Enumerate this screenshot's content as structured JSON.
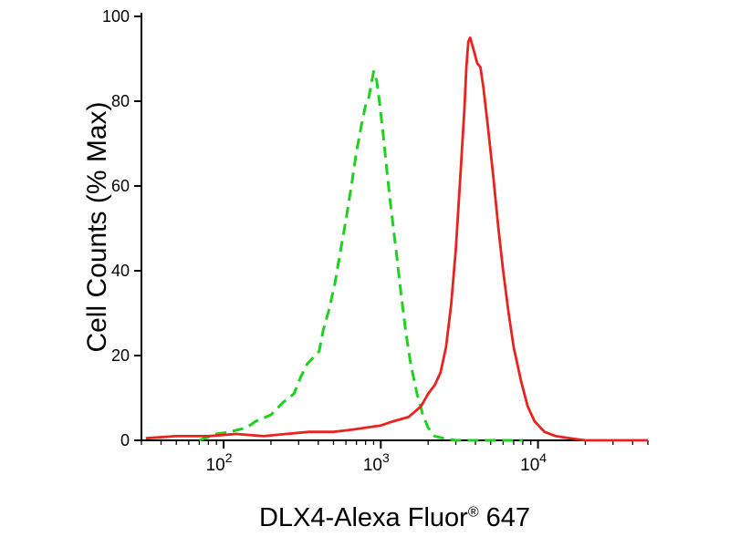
{
  "figure": {
    "background_color": "#ffffff"
  },
  "chart_data": {
    "type": "line",
    "subtype": "flow-cytometry-overlay-histogram",
    "title": "",
    "xlabel": "DLX4-Alexa Fluor® 647",
    "xlabel_parts": {
      "pre": "DLX4-Alexa Fluor",
      "reg": "®",
      "post": " 647"
    },
    "ylabel": "Cell Counts (% Max)",
    "xscale": "log",
    "xlim": [
      30,
      50000
    ],
    "ylim": [
      0,
      100
    ],
    "x_major_ticks": [
      100,
      1000,
      10000
    ],
    "x_tick_display": [
      "10^2",
      "10^3",
      "10^4"
    ],
    "y_ticks": [
      0,
      20,
      40,
      60,
      80,
      100
    ],
    "grid": false,
    "legend": "none",
    "axis_color": "#000000",
    "series": [
      {
        "name": "control-green-dashed",
        "color": "#1fd11f",
        "style": "dashed",
        "width": 3,
        "peak": {
          "x": 900,
          "y": 87
        },
        "points": [
          [
            70,
            0
          ],
          [
            90,
            1.5
          ],
          [
            110,
            2
          ],
          [
            140,
            3
          ],
          [
            160,
            4.5
          ],
          [
            200,
            6
          ],
          [
            240,
            9
          ],
          [
            280,
            11
          ],
          [
            310,
            15
          ],
          [
            340,
            18
          ],
          [
            405,
            21
          ],
          [
            430,
            26
          ],
          [
            470,
            31
          ],
          [
            510,
            37
          ],
          [
            550,
            44
          ],
          [
            600,
            52
          ],
          [
            650,
            60
          ],
          [
            700,
            68
          ],
          [
            750,
            74
          ],
          [
            800,
            79
          ],
          [
            830,
            80
          ],
          [
            860,
            83
          ],
          [
            900,
            87
          ],
          [
            940,
            85
          ],
          [
            980,
            80
          ],
          [
            1030,
            73
          ],
          [
            1090,
            64
          ],
          [
            1150,
            56
          ],
          [
            1250,
            45
          ],
          [
            1350,
            34
          ],
          [
            1450,
            25
          ],
          [
            1550,
            18
          ],
          [
            1700,
            11
          ],
          [
            1850,
            6
          ],
          [
            2000,
            3
          ],
          [
            2200,
            1
          ],
          [
            2500,
            0.5
          ],
          [
            3000,
            0
          ],
          [
            8000,
            0
          ]
        ]
      },
      {
        "name": "dlx4-red-solid",
        "color": "#e8231d",
        "style": "solid",
        "width": 2.8,
        "peak": {
          "x": 3700,
          "y": 95
        },
        "points": [
          [
            32,
            0.5
          ],
          [
            50,
            1
          ],
          [
            80,
            1
          ],
          [
            120,
            1.5
          ],
          [
            180,
            1
          ],
          [
            250,
            1.5
          ],
          [
            350,
            2
          ],
          [
            500,
            2
          ],
          [
            650,
            2.5
          ],
          [
            800,
            3
          ],
          [
            1000,
            3.5
          ],
          [
            1200,
            4.5
          ],
          [
            1500,
            5.5
          ],
          [
            1800,
            8
          ],
          [
            2000,
            11
          ],
          [
            2200,
            13
          ],
          [
            2400,
            16
          ],
          [
            2600,
            22
          ],
          [
            2800,
            32
          ],
          [
            3000,
            45
          ],
          [
            3200,
            62
          ],
          [
            3400,
            78
          ],
          [
            3500,
            88
          ],
          [
            3600,
            94
          ],
          [
            3700,
            95
          ],
          [
            3900,
            92
          ],
          [
            4100,
            89
          ],
          [
            4300,
            88
          ],
          [
            4500,
            83
          ],
          [
            4800,
            74
          ],
          [
            5200,
            62
          ],
          [
            5600,
            50
          ],
          [
            6000,
            40
          ],
          [
            6500,
            30
          ],
          [
            7000,
            22
          ],
          [
            7800,
            14
          ],
          [
            8600,
            8
          ],
          [
            9500,
            4.5
          ],
          [
            11000,
            2
          ],
          [
            13000,
            1
          ],
          [
            16000,
            0.5
          ],
          [
            20000,
            0
          ],
          [
            50000,
            0
          ]
        ]
      }
    ]
  }
}
